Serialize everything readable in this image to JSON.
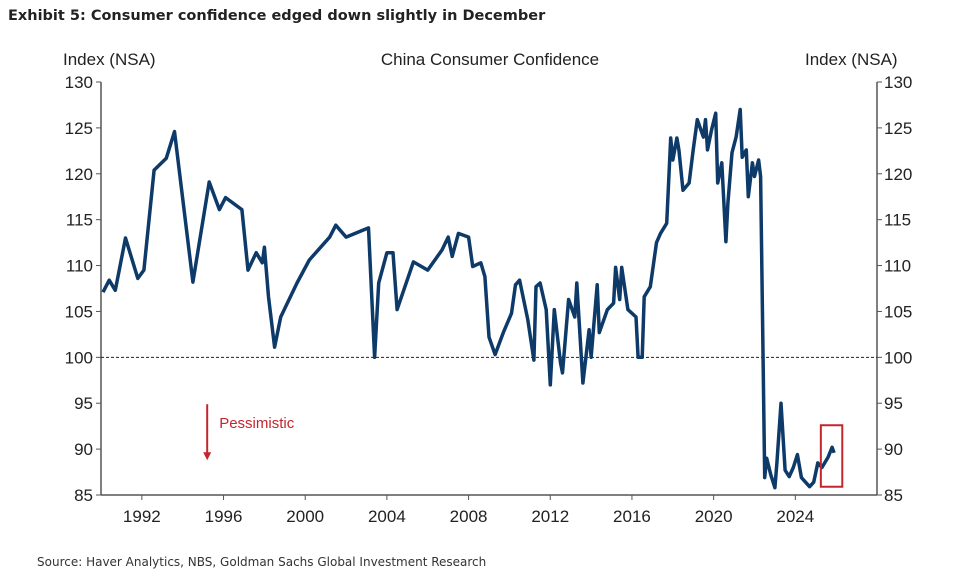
{
  "exhibit_title": "Exhibit 5: Consumer confidence edged down slightly in December",
  "source": "Source: Haver Analytics, NBS, Goldman Sachs Global Investment Research",
  "colors": {
    "line": "#0d3a68",
    "annotation": "#c3262d",
    "axis": "#555555"
  },
  "chart_data": {
    "type": "line",
    "title": "China Consumer Confidence",
    "ylabel_left": "Index (NSA)",
    "ylabel_right": "Index (NSA)",
    "xlim": [
      1990,
      2028
    ],
    "ylim": [
      85,
      130
    ],
    "x_ticks": [
      1992,
      1996,
      2000,
      2004,
      2008,
      2012,
      2016,
      2020,
      2024
    ],
    "y_ticks": [
      85,
      90,
      95,
      100,
      105,
      110,
      115,
      120,
      125,
      130
    ],
    "reference_line": 100,
    "grid": false,
    "annotation": {
      "text": "Pessimistic",
      "arrow_from": 95,
      "arrow_to": 89,
      "arrow_x": 1995.2
    },
    "highlight_box": {
      "x": [
        2025.25,
        2026.3
      ],
      "y": [
        85.9,
        92.6
      ]
    },
    "series": [
      {
        "points": [
          [
            1990.1,
            107.1
          ],
          [
            1990.4,
            108.4
          ],
          [
            1990.7,
            107.3
          ],
          [
            1991.2,
            113
          ],
          [
            1991.8,
            108.6
          ],
          [
            1992.1,
            109.5
          ],
          [
            1992.6,
            120.4
          ],
          [
            1993.2,
            121.7
          ],
          [
            1993.6,
            124.6
          ],
          [
            1994.5,
            108.2
          ],
          [
            1995.3,
            119.1
          ],
          [
            1995.8,
            116.1
          ],
          [
            1996.1,
            117.4
          ],
          [
            1996.9,
            116.1
          ],
          [
            1997.2,
            109.5
          ],
          [
            1997.6,
            111.4
          ],
          [
            1997.9,
            110.3
          ],
          [
            1998.0,
            112
          ],
          [
            1998.2,
            106.6
          ],
          [
            1998.5,
            101.1
          ],
          [
            1998.8,
            104.4
          ],
          [
            1999.6,
            108.1
          ],
          [
            2000.2,
            110.6
          ],
          [
            2001.2,
            113.1
          ],
          [
            2001.5,
            114.4
          ],
          [
            2002.0,
            113.1
          ],
          [
            2003.1,
            114.1
          ],
          [
            2003.4,
            100
          ],
          [
            2003.6,
            108.1
          ],
          [
            2004.0,
            111.4
          ],
          [
            2004.3,
            111.4
          ],
          [
            2004.5,
            105.2
          ],
          [
            2005.3,
            110.4
          ],
          [
            2006.0,
            109.5
          ],
          [
            2006.7,
            111.7
          ],
          [
            2007.0,
            113.1
          ],
          [
            2007.2,
            111
          ],
          [
            2007.5,
            113.5
          ],
          [
            2008.0,
            113.1
          ],
          [
            2008.2,
            109.9
          ],
          [
            2008.6,
            110.3
          ],
          [
            2008.8,
            108.8
          ],
          [
            2009.0,
            102.2
          ],
          [
            2009.3,
            100.3
          ],
          [
            2009.7,
            102.7
          ],
          [
            2010.1,
            104.8
          ],
          [
            2010.3,
            107.9
          ],
          [
            2010.5,
            108.4
          ],
          [
            2010.9,
            104.1
          ],
          [
            2011.2,
            99.7
          ],
          [
            2011.3,
            107.7
          ],
          [
            2011.5,
            108.1
          ],
          [
            2011.8,
            105.2
          ],
          [
            2012.0,
            97
          ],
          [
            2012.2,
            105.2
          ],
          [
            2012.5,
            99.4
          ],
          [
            2012.6,
            98.3
          ],
          [
            2012.9,
            106.3
          ],
          [
            2013.2,
            104.4
          ],
          [
            2013.3,
            108.1
          ],
          [
            2013.6,
            97.2
          ],
          [
            2013.9,
            103
          ],
          [
            2014.0,
            100
          ],
          [
            2014.3,
            107.9
          ],
          [
            2014.4,
            102.7
          ],
          [
            2014.8,
            105.2
          ],
          [
            2015.1,
            105.9
          ],
          [
            2015.2,
            109.8
          ],
          [
            2015.4,
            106.3
          ],
          [
            2015.5,
            109.8
          ],
          [
            2015.8,
            105.2
          ],
          [
            2016.2,
            104.4
          ],
          [
            2016.3,
            100
          ],
          [
            2016.5,
            100
          ],
          [
            2016.6,
            106.6
          ],
          [
            2016.9,
            107.7
          ],
          [
            2017.2,
            112.5
          ],
          [
            2017.4,
            113.5
          ],
          [
            2017.7,
            114.6
          ],
          [
            2017.9,
            123.9
          ],
          [
            2018.0,
            121.5
          ],
          [
            2018.2,
            123.9
          ],
          [
            2018.3,
            122.6
          ],
          [
            2018.5,
            118.2
          ],
          [
            2018.8,
            119
          ],
          [
            2019.0,
            122.6
          ],
          [
            2019.2,
            125.9
          ],
          [
            2019.5,
            124
          ],
          [
            2019.6,
            125.9
          ],
          [
            2019.7,
            122.6
          ],
          [
            2019.9,
            124.8
          ],
          [
            2020.1,
            126.6
          ],
          [
            2020.2,
            119
          ],
          [
            2020.4,
            121.2
          ],
          [
            2020.6,
            112.6
          ],
          [
            2020.7,
            116.8
          ],
          [
            2020.9,
            122.3
          ],
          [
            2021.1,
            124
          ],
          [
            2021.3,
            127
          ],
          [
            2021.4,
            121.8
          ],
          [
            2021.6,
            122.6
          ],
          [
            2021.7,
            117.5
          ],
          [
            2021.9,
            121.2
          ],
          [
            2022.0,
            119.7
          ],
          [
            2022.2,
            121.5
          ],
          [
            2022.3,
            119.7
          ],
          [
            2022.5,
            86.9
          ],
          [
            2022.6,
            89
          ],
          [
            2022.8,
            87.2
          ],
          [
            2023.0,
            85.8
          ],
          [
            2023.1,
            88.5
          ],
          [
            2023.3,
            95
          ],
          [
            2023.5,
            87.7
          ],
          [
            2023.7,
            87
          ],
          [
            2023.9,
            88
          ],
          [
            2024.1,
            89.4
          ],
          [
            2024.3,
            86.9
          ],
          [
            2024.7,
            85.9
          ],
          [
            2024.9,
            86.4
          ],
          [
            2025.1,
            88.5
          ],
          [
            2025.3,
            88
          ],
          [
            2025.6,
            89.1
          ],
          [
            2025.8,
            90.2
          ],
          [
            2025.9,
            89.6
          ]
        ]
      }
    ]
  }
}
